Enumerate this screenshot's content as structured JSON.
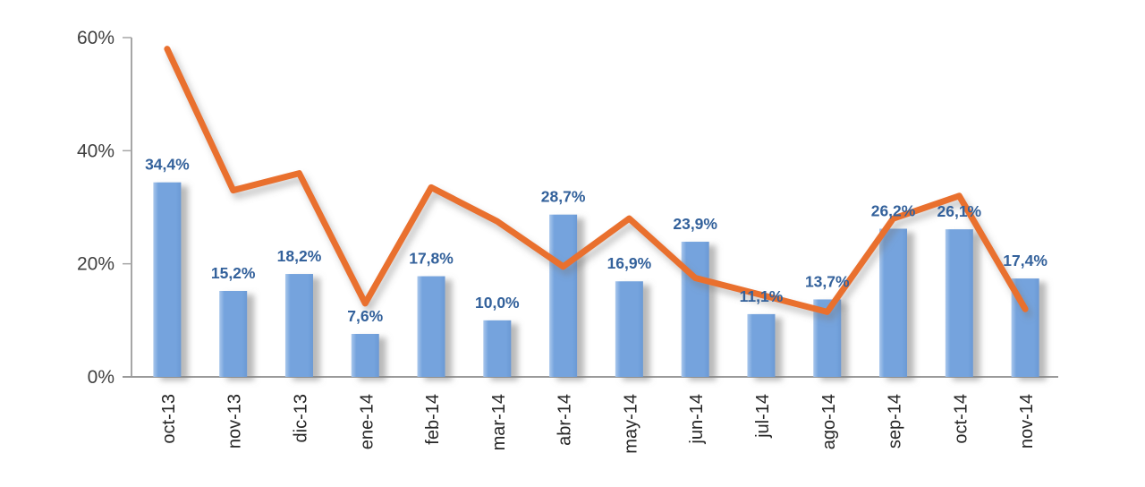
{
  "chart_data": {
    "type": "combo-bar-line",
    "title": "",
    "xlabel": "",
    "ylabel": "",
    "ylim": [
      0,
      60
    ],
    "grid": false,
    "legend_position": "none",
    "categories": [
      "oct-13",
      "nov-13",
      "dic-13",
      "ene-14",
      "feb-14",
      "mar-14",
      "abr-14",
      "may-14",
      "jun-14",
      "jul-14",
      "ago-14",
      "sep-14",
      "oct-14",
      "nov-14"
    ],
    "series": [
      {
        "name": "bar-series",
        "type": "bar",
        "values": [
          34.4,
          15.2,
          18.2,
          7.6,
          17.8,
          10.0,
          28.7,
          16.9,
          23.9,
          11.1,
          13.7,
          26.2,
          26.1,
          17.4
        ],
        "data_labels": [
          "34,4%",
          "15,2%",
          "18,2%",
          "7,6%",
          "17,8%",
          "10,0%",
          "28,7%",
          "16,9%",
          "23,9%",
          "11,1%",
          "13,7%",
          "26,2%",
          "26,1%",
          "17,4%"
        ]
      },
      {
        "name": "line-series",
        "type": "line",
        "values": [
          58,
          33,
          36,
          13,
          33.5,
          27.5,
          19.5,
          28,
          17.5,
          14.5,
          11.5,
          28,
          32,
          12
        ]
      }
    ],
    "y_axis": {
      "ticks": [
        {
          "value": 0,
          "label": "0%"
        },
        {
          "value": 20,
          "label": "20%"
        },
        {
          "value": 40,
          "label": "40%"
        },
        {
          "value": 60,
          "label": "60%"
        }
      ]
    }
  },
  "colors": {
    "bar_fill": "#74A3DD",
    "bar_fill_light": "#A9C7EC",
    "bar_fill_dark": "#6B99D4",
    "value_label": "#33619B",
    "line": "#E9702E",
    "axis": "#A6A6A6",
    "baseline": "#9A9A9A",
    "ytick_text": "#404040",
    "xcat_text": "#262626",
    "background": "#FFFFFF"
  }
}
